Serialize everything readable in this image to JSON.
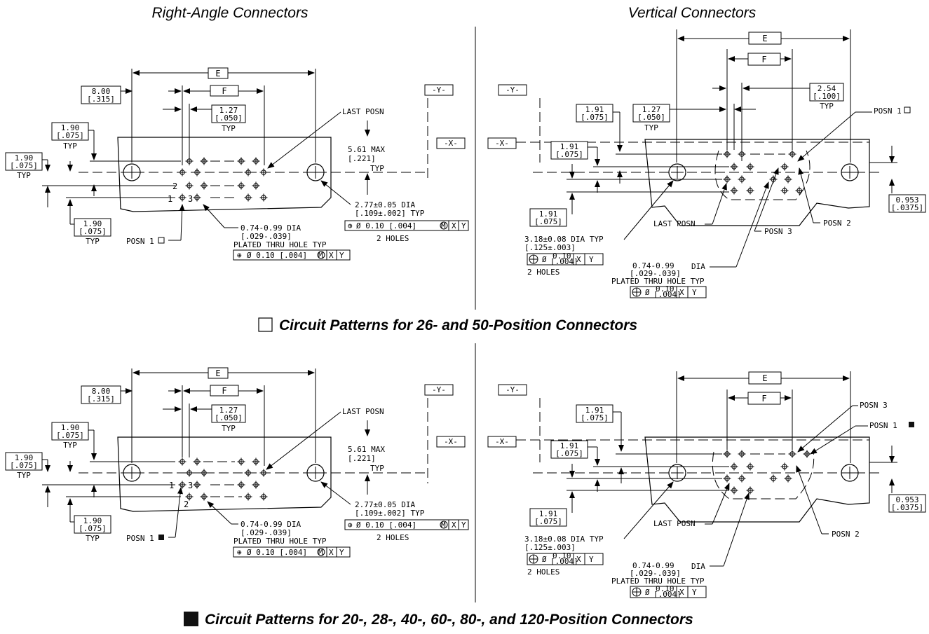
{
  "titles": {
    "right_angle": "Right-Angle Connectors",
    "vertical": "Vertical Connectors"
  },
  "captions": {
    "top": "Circuit Patterns for 26- and 50-Position Connectors",
    "bottom": "Circuit Patterns for 20-, 28-, 40-, 60-, 80-, and 120-Position Connectors"
  },
  "datums": {
    "x": "-X-",
    "y": "-Y-"
  },
  "labels": {
    "E": "E",
    "F": "F",
    "typ": "TYP",
    "last_posn": "LAST POSN",
    "posn1": "POSN 1",
    "posn2": "POSN 2",
    "posn3": "POSN 3",
    "two_holes": "2 HOLES",
    "num1": "1",
    "num2": "2",
    "num3": "3"
  },
  "dims": {
    "d800": "8.00",
    "d315": "[.315]",
    "d127": "1.27",
    "d050": "[.050]",
    "d190": "1.90",
    "d075": "[.075]",
    "d191": "1.91",
    "d254": "2.54",
    "d100": "[.100]",
    "d0953": "0.953",
    "d0375": "[.0375]",
    "d561": "5.61 MAX",
    "d221": "[.221]",
    "d277": "2.77±0.05 DIA",
    "d109": "[.109±.002]  TYP",
    "d074": "0.74-0.99 DIA",
    "d074b": "0.74-0.99",
    "dia": "DIA",
    "d029": "[.029-.039]",
    "plated": "PLATED THRU HOLE TYP",
    "d318": "3.18±0.08 DIA  TYP",
    "d125": "[.125±.003]",
    "fcf": "Ø 0.10 [.004]",
    "fcf_small": "0.10",
    "fcf_small2": "[.004]",
    "m": "M",
    "x": "X",
    "y": "Y"
  }
}
